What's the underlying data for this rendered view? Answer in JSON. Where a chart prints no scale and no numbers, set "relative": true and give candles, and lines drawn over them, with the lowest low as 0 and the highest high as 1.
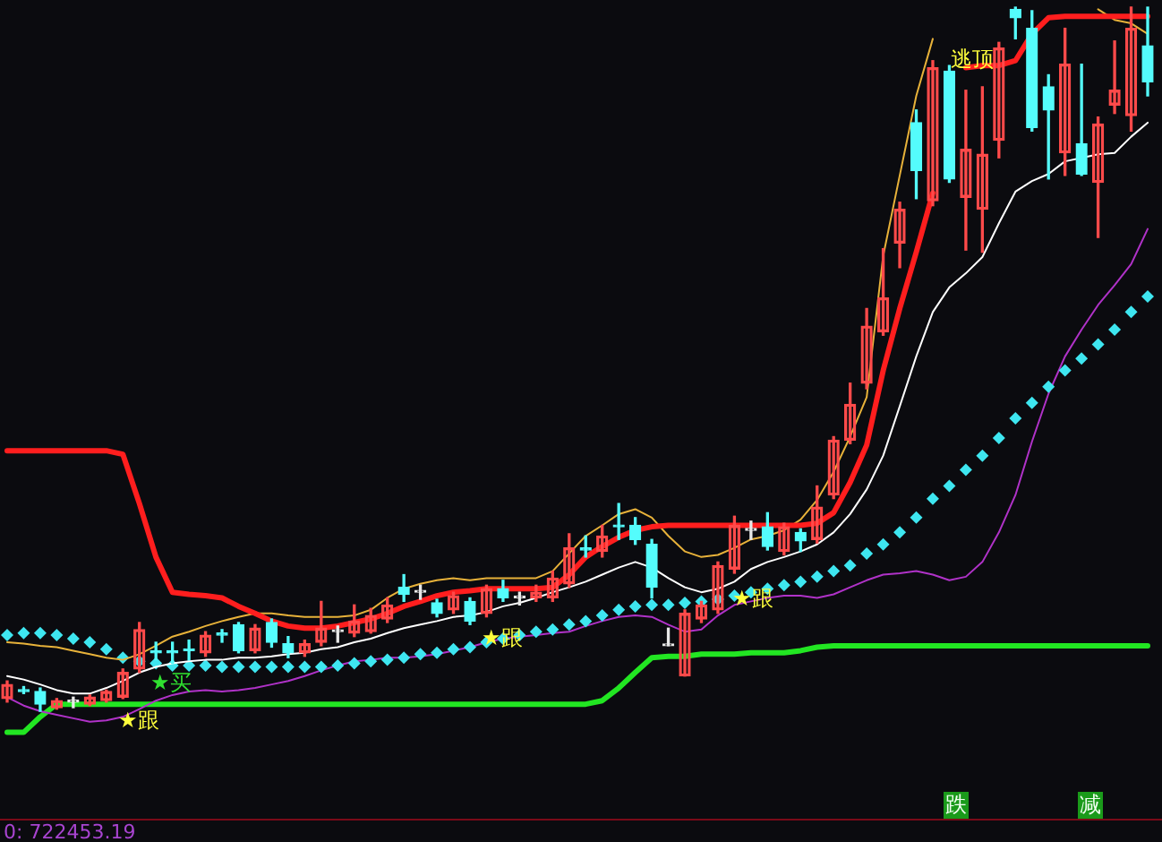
{
  "chart_data": {
    "type": "candlestick",
    "relative": true,
    "legend": false,
    "categories": [
      null,
      null,
      null,
      null,
      null,
      null,
      null,
      null,
      null,
      null,
      null,
      null,
      null,
      null,
      null,
      null,
      null,
      null,
      null,
      null,
      null,
      null,
      null,
      null,
      null,
      null,
      null,
      null,
      null,
      null,
      null,
      null,
      null,
      null,
      null,
      null,
      null,
      null,
      null,
      null,
      null,
      null,
      null,
      null,
      null,
      null,
      null,
      null,
      null,
      null,
      null,
      null,
      null,
      null,
      null,
      null,
      null,
      null,
      null,
      null,
      null,
      null,
      null,
      null,
      null,
      null,
      null,
      null,
      null,
      null
    ],
    "ohlc": [
      [
        0.018,
        0.043,
        0.013,
        0.038
      ],
      [
        0.03,
        0.035,
        0.025,
        0.028
      ],
      [
        0.028,
        0.033,
        0,
        0.01
      ],
      [
        0.005,
        0.018,
        0.003,
        0.015
      ],
      [
        0.013,
        0.02,
        0.005,
        0.013
      ],
      [
        0.01,
        0.023,
        0.008,
        0.02
      ],
      [
        0.015,
        0.03,
        0.013,
        0.028
      ],
      [
        0.02,
        0.06,
        0.018,
        0.055
      ],
      [
        0.06,
        0.126,
        0.055,
        0.116
      ],
      [
        0.086,
        0.098,
        0.073,
        0.083
      ],
      [
        0.086,
        0.098,
        0.068,
        0.083
      ],
      [
        0.088,
        0.101,
        0.073,
        0.086
      ],
      [
        0.083,
        0.113,
        0.078,
        0.108
      ],
      [
        0.111,
        0.116,
        0.098,
        0.108
      ],
      [
        0.123,
        0.126,
        0.083,
        0.086
      ],
      [
        0.086,
        0.123,
        0.083,
        0.118
      ],
      [
        0.126,
        0.131,
        0.091,
        0.098
      ],
      [
        0.096,
        0.106,
        0.076,
        0.083
      ],
      [
        0.083,
        0.101,
        0.078,
        0.096
      ],
      [
        0.098,
        0.156,
        0.093,
        0.118
      ],
      [
        0.113,
        0.121,
        0.098,
        0.113
      ],
      [
        0.111,
        0.151,
        0.106,
        0.128
      ],
      [
        0.113,
        0.146,
        0.111,
        0.136
      ],
      [
        0.131,
        0.161,
        0.126,
        0.151
      ],
      [
        0.176,
        0.194,
        0.156,
        0.166
      ],
      [
        0.169,
        0.179,
        0.159,
        0.169
      ],
      [
        0.154,
        0.159,
        0.134,
        0.139
      ],
      [
        0.144,
        0.169,
        0.139,
        0.164
      ],
      [
        0.156,
        0.161,
        0.123,
        0.128
      ],
      [
        0.139,
        0.179,
        0.134,
        0.174
      ],
      [
        0.174,
        0.186,
        0.156,
        0.161
      ],
      [
        0.161,
        0.169,
        0.151,
        0.161
      ],
      [
        0.161,
        0.179,
        0.156,
        0.169
      ],
      [
        0.161,
        0.199,
        0.156,
        0.189
      ],
      [
        0.181,
        0.252,
        0.176,
        0.232
      ],
      [
        0.232,
        0.249,
        0.219,
        0.229
      ],
      [
        0.227,
        0.264,
        0.219,
        0.249
      ],
      [
        0.264,
        0.295,
        0.244,
        0.262
      ],
      [
        0.264,
        0.275,
        0.237,
        0.244
      ],
      [
        0.237,
        0.244,
        0.161,
        0.176
      ],
      [
        0.093,
        0.118,
        0.093,
        0.093
      ],
      [
        0.05,
        0.144,
        0.05,
        0.139
      ],
      [
        0.131,
        0.156,
        0.126,
        0.151
      ],
      [
        0.144,
        0.212,
        0.139,
        0.207
      ],
      [
        0.202,
        0.277,
        0.196,
        0.264
      ],
      [
        0.257,
        0.27,
        0.244,
        0.257
      ],
      [
        0.262,
        0.282,
        0.229,
        0.234
      ],
      [
        0.227,
        0.267,
        0.222,
        0.262
      ],
      [
        0.254,
        0.259,
        0.227,
        0.242
      ],
      [
        0.244,
        0.32,
        0.239,
        0.29
      ],
      [
        0.307,
        0.39,
        0.302,
        0.385
      ],
      [
        0.385,
        0.466,
        0.38,
        0.436
      ],
      [
        0.466,
        0.572,
        0.458,
        0.547
      ],
      [
        0.539,
        0.657,
        0.534,
        0.587
      ],
      [
        0.665,
        0.723,
        0.63,
        0.713
      ],
      [
        0.836,
        0.854,
        0.728,
        0.768
      ],
      [
        0.725,
        0.924,
        0.718,
        0.914
      ],
      [
        0.909,
        0.917,
        0.751,
        0.756
      ],
      [
        0.73,
        0.882,
        0.655,
        0.798
      ],
      [
        0.713,
        0.887,
        0.652,
        0.791
      ],
      [
        0.811,
        0.95,
        0.786,
        0.942
      ],
      [
        0.997,
        1,
        0.955,
        0.985
      ],
      [
        0.97,
        0.995,
        0.824,
        0.829
      ],
      [
        0.887,
        0.904,
        0.756,
        0.854
      ],
      [
        0.793,
        0.97,
        0.761,
        0.919
      ],
      [
        0.806,
        0.919,
        0.761,
        0.763
      ],
      [
        0.751,
        0.844,
        0.673,
        0.834
      ],
      [
        0.861,
        0.952,
        0.849,
        0.882
      ],
      [
        0.846,
        1,
        0.824,
        0.97
      ],
      [
        0.945,
        1,
        0.874,
        0.894
      ]
    ],
    "colors": [
      "#ff4a4a",
      "#54fcfc",
      "#54fcfc",
      "#ff4a4a",
      "#e8e8e8",
      "#ff4a4a",
      "#ff4a4a",
      "#ff4a4a",
      "#ff4a4a",
      "#54fcfc",
      "#54fcfc",
      "#54fcfc",
      "#ff4a4a",
      "#54fcfc",
      "#54fcfc",
      "#ff4a4a",
      "#54fcfc",
      "#54fcfc",
      "#ff4a4a",
      "#ff4a4a",
      "#e8e8e8",
      "#ff4a4a",
      "#ff4a4a",
      "#ff4a4a",
      "#54fcfc",
      "#e8e8e8",
      "#54fcfc",
      "#ff4a4a",
      "#54fcfc",
      "#ff4a4a",
      "#54fcfc",
      "#e8e8e8",
      "#ff4a4a",
      "#ff4a4a",
      "#ff4a4a",
      "#54fcfc",
      "#ff4a4a",
      "#54fcfc",
      "#54fcfc",
      "#54fcfc",
      "#e8e8e8",
      "#ff4a4a",
      "#ff4a4a",
      "#ff4a4a",
      "#ff4a4a",
      "#e8e8e8",
      "#54fcfc",
      "#ff4a4a",
      "#54fcfc",
      "#ff4a4a",
      "#ff4a4a",
      "#ff4a4a",
      "#ff4a4a",
      "#ff4a4a",
      "#ff4a4a",
      "#54fcfc",
      "#ff4a4a",
      "#54fcfc",
      "#ff4a4a",
      "#ff4a4a",
      "#ff4a4a",
      "#54fcfc",
      "#54fcfc",
      "#54fcfc",
      "#ff4a4a",
      "#54fcfc",
      "#ff4a4a",
      "#ff4a4a",
      "#ff4a4a",
      "#54fcfc"
    ],
    "series": [
      {
        "type": "line",
        "color": "#ff1e1e",
        "values": [
          0.37,
          0.37,
          0.37,
          0.37,
          0.37,
          0.37,
          0.37,
          0.365,
          0.295,
          0.219,
          0.169,
          0.166,
          0.164,
          0.161,
          0.149,
          0.139,
          0.128,
          0.121,
          0.118,
          0.118,
          0.121,
          0.126,
          0.131,
          0.139,
          0.149,
          0.156,
          0.164,
          0.169,
          0.171,
          0.174,
          0.174,
          0.174,
          0.174,
          0.176,
          0.194,
          0.219,
          0.234,
          0.247,
          0.257,
          0.262,
          0.264,
          0.264,
          0.264,
          0.264,
          0.264,
          0.264,
          0.264,
          0.264,
          0.264,
          0.267,
          0.282,
          0.325,
          0.378,
          0.484,
          0.572,
          0.652,
          0.736,
          null,
          0.914,
          0.917,
          0.917,
          0.924,
          0.962,
          0.985,
          0.987,
          0.987,
          0.987,
          0.987,
          0.987,
          0.987
        ]
      },
      {
        "type": "line",
        "color": "#e8b23a",
        "values": [
          0.098,
          0.096,
          0.093,
          0.091,
          0.086,
          0.081,
          0.076,
          0.073,
          0.081,
          0.093,
          0.106,
          0.113,
          0.121,
          0.128,
          0.134,
          0.139,
          0.139,
          0.136,
          0.134,
          0.134,
          0.134,
          0.136,
          0.144,
          0.161,
          0.174,
          0.181,
          0.186,
          0.189,
          0.186,
          0.189,
          0.189,
          0.189,
          0.189,
          0.199,
          0.224,
          0.249,
          0.264,
          0.28,
          0.287,
          0.275,
          0.249,
          0.227,
          0.219,
          0.222,
          0.232,
          0.244,
          0.249,
          0.257,
          0.272,
          0.3,
          0.34,
          0.39,
          0.446,
          0.647,
          0.761,
          0.874,
          0.955,
          null,
          null,
          null,
          null,
          null,
          null,
          null,
          null,
          null,
          0.997,
          0.982,
          0.977,
          0.962
        ]
      },
      {
        "type": "line",
        "color": "#ffffff",
        "values": [
          0.05,
          0.045,
          0.038,
          0.03,
          0.025,
          0.025,
          0.033,
          0.043,
          0.055,
          0.063,
          0.068,
          0.071,
          0.073,
          0.073,
          0.076,
          0.076,
          0.078,
          0.081,
          0.083,
          0.088,
          0.091,
          0.098,
          0.103,
          0.111,
          0.118,
          0.123,
          0.128,
          0.134,
          0.136,
          0.141,
          0.149,
          0.154,
          0.161,
          0.169,
          0.176,
          0.184,
          0.194,
          0.204,
          0.212,
          0.204,
          0.189,
          0.176,
          0.169,
          0.174,
          0.184,
          0.202,
          0.212,
          0.219,
          0.227,
          0.237,
          0.254,
          0.28,
          0.315,
          0.363,
          0.433,
          0.504,
          0.567,
          0.602,
          0.622,
          0.645,
          0.693,
          0.738,
          0.753,
          0.763,
          0.781,
          0.786,
          0.791,
          0.793,
          0.816,
          0.836
        ]
      },
      {
        "type": "scatter",
        "color": "#3ee6f0",
        "marker": "diamond",
        "values": [
          0.108,
          0.111,
          0.111,
          0.108,
          0.103,
          0.098,
          0.088,
          0.076,
          0.071,
          0.068,
          0.065,
          0.065,
          0.065,
          0.063,
          0.063,
          0.063,
          0.063,
          0.063,
          0.063,
          0.063,
          0.065,
          0.068,
          0.071,
          0.073,
          0.076,
          0.081,
          0.083,
          0.088,
          0.091,
          0.098,
          0.103,
          0.108,
          0.113,
          0.116,
          0.123,
          0.128,
          0.136,
          0.144,
          0.149,
          0.151,
          0.151,
          0.154,
          0.156,
          0.159,
          0.164,
          0.169,
          0.174,
          0.179,
          0.184,
          0.191,
          0.199,
          0.207,
          0.224,
          0.237,
          0.254,
          0.275,
          0.302,
          0.32,
          0.343,
          0.363,
          0.388,
          0.416,
          0.438,
          0.461,
          0.484,
          0.501,
          0.521,
          0.542,
          0.567,
          0.589
        ]
      },
      {
        "type": "line",
        "color": "#b032c8",
        "values": [
          0.02,
          0.008,
          0,
          -0.005,
          -0.01,
          -0.015,
          -0.013,
          -0.008,
          0.003,
          0.015,
          0.023,
          0.028,
          0.03,
          0.028,
          0.03,
          0.033,
          0.038,
          0.043,
          0.05,
          0.058,
          0.065,
          0.071,
          0.073,
          0.076,
          0.076,
          0.078,
          0.081,
          0.086,
          0.091,
          0.098,
          0.103,
          0.106,
          0.108,
          0.111,
          0.113,
          0.121,
          0.128,
          0.134,
          0.136,
          0.134,
          0.123,
          0.113,
          0.116,
          0.136,
          0.151,
          0.156,
          0.161,
          0.164,
          0.164,
          0.161,
          0.166,
          0.176,
          0.186,
          0.194,
          0.196,
          0.199,
          0.194,
          0.186,
          0.191,
          0.212,
          0.254,
          0.307,
          0.383,
          0.451,
          0.504,
          0.542,
          0.577,
          0.605,
          0.635,
          0.685
        ]
      },
      {
        "type": "line",
        "color": "#22e622",
        "values": [
          -0.03,
          -0.03,
          -0.008,
          0.01,
          0.01,
          0.01,
          0.01,
          0.01,
          0.01,
          0.01,
          0.01,
          0.01,
          0.01,
          0.01,
          0.01,
          0.01,
          0.01,
          0.01,
          0.01,
          0.01,
          0.01,
          0.01,
          0.01,
          0.01,
          0.01,
          0.01,
          0.01,
          0.01,
          0.01,
          0.01,
          0.01,
          0.01,
          0.01,
          0.01,
          0.01,
          0.01,
          0.015,
          0.033,
          0.055,
          0.076,
          0.078,
          0.078,
          0.081,
          0.081,
          0.081,
          0.083,
          0.083,
          0.083,
          0.086,
          0.091,
          0.093,
          0.093,
          0.093,
          0.093,
          0.093,
          0.093,
          0.093,
          0.093,
          0.093,
          0.093,
          0.093,
          0.093,
          0.093,
          0.093,
          0.093,
          0.093,
          0.093,
          0.093,
          0.093,
          0.093
        ]
      }
    ],
    "annotations": [
      "★跟",
      "★买",
      "★跟",
      "★跟",
      "逃顶",
      "跌",
      "减",
      "0: 722453.19"
    ]
  }
}
